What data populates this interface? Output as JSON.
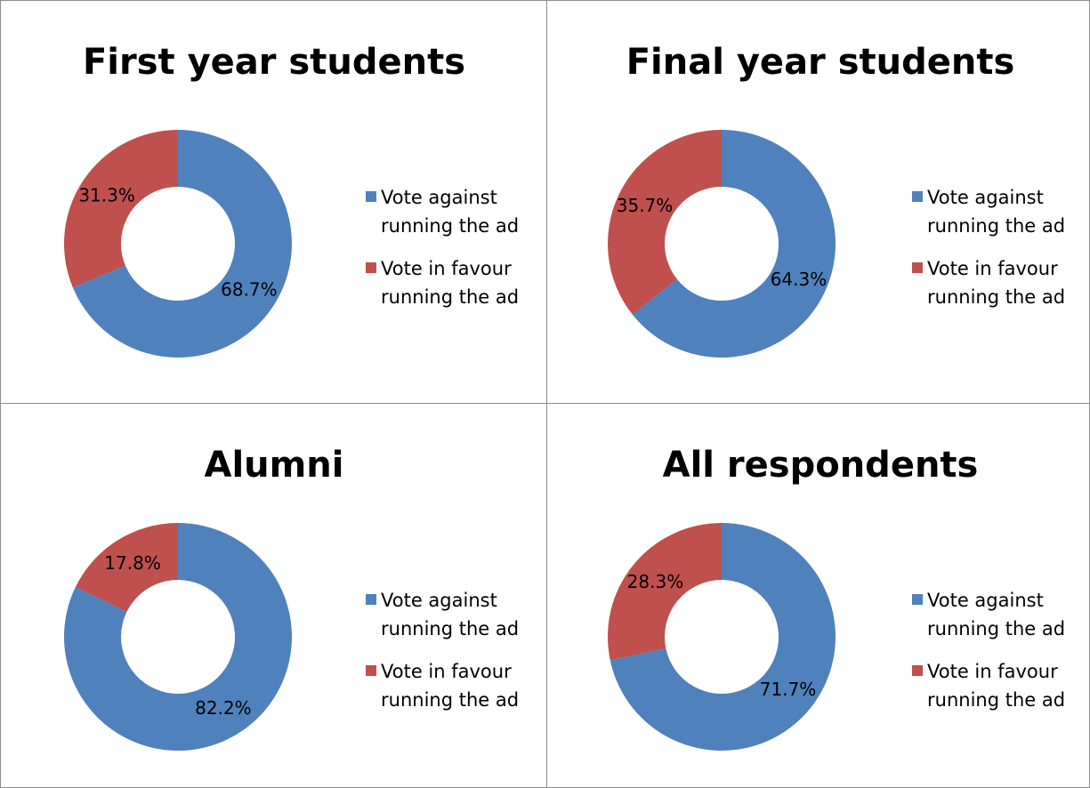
{
  "chart_data": [
    {
      "type": "donut",
      "title": "First year students",
      "categories": [
        "Vote against running the ad",
        "Vote in favour running the ad"
      ],
      "values": [
        68.7,
        31.3
      ],
      "value_labels": [
        "68.7%",
        "31.3%"
      ],
      "colors": [
        "#4f81bd",
        "#c0504d"
      ]
    },
    {
      "type": "donut",
      "title": "Final year students",
      "categories": [
        "Vote against running the ad",
        "Vote in favour running the ad"
      ],
      "values": [
        64.3,
        35.7
      ],
      "value_labels": [
        "64.3%",
        "35.7%"
      ],
      "colors": [
        "#4f81bd",
        "#c0504d"
      ]
    },
    {
      "type": "donut",
      "title": "Alumni",
      "categories": [
        "Vote against running the ad",
        "Vote in favour running the ad"
      ],
      "values": [
        82.2,
        17.8
      ],
      "value_labels": [
        "82.2%",
        "17.8%"
      ],
      "colors": [
        "#4f81bd",
        "#c0504d"
      ]
    },
    {
      "type": "donut",
      "title": "All respondents",
      "categories": [
        "Vote against running the ad",
        "Vote in favour running the ad"
      ],
      "values": [
        71.7,
        28.3
      ],
      "value_labels": [
        "71.7%",
        "28.3%"
      ],
      "colors": [
        "#4f81bd",
        "#c0504d"
      ]
    }
  ]
}
